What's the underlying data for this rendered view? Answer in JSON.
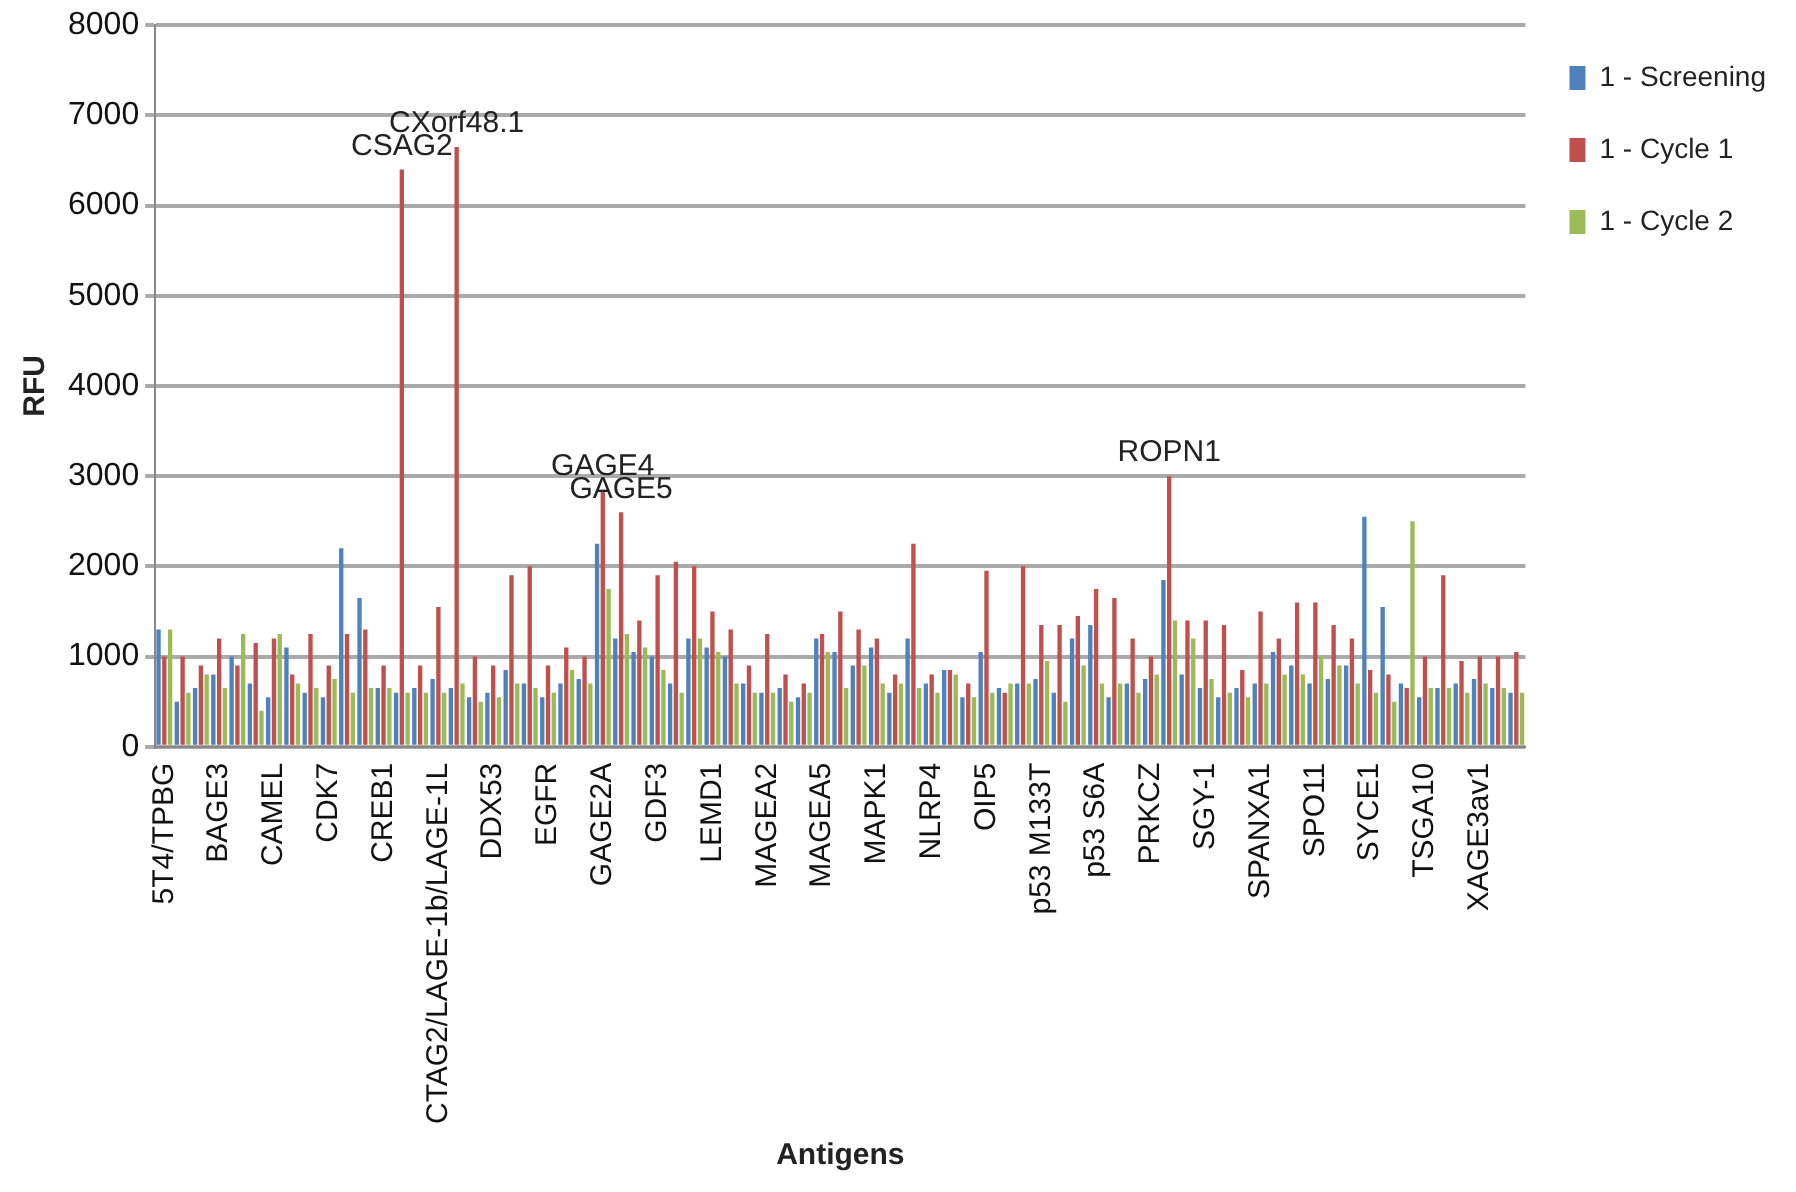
{
  "chart_data": {
    "type": "bar",
    "xlabel": "Antigens",
    "ylabel": "RFU",
    "categories": [
      "5T4/TPBG",
      null,
      null,
      "BAGE3",
      null,
      null,
      "CAMEL",
      null,
      null,
      "CDK7",
      null,
      null,
      "CREB1",
      null,
      null,
      "CTAG2/LAGE-1b/LAGE-1L",
      null,
      null,
      "DDX53",
      null,
      null,
      "EGFR",
      null,
      null,
      "GAGE2A",
      null,
      null,
      "GDF3",
      null,
      null,
      "LEMD1",
      null,
      null,
      "MAGEA2",
      null,
      null,
      "MAGEA5",
      null,
      null,
      "MAPK1",
      null,
      null,
      "NLRP4",
      null,
      null,
      "OIP5",
      null,
      null,
      "p53 M133T",
      null,
      null,
      "p53 S6A",
      null,
      null,
      "PRKCZ",
      null,
      null,
      "SGY-1",
      null,
      null,
      "SPANXA1",
      null,
      null,
      "SPO11",
      null,
      null,
      "SYCE1",
      null,
      null,
      "TSGA10",
      null,
      null,
      "XAGE3av1",
      null,
      null
    ],
    "series": [
      {
        "name": "1 - Screening",
        "color": "#4f81bd",
        "values": [
          1300,
          500,
          650,
          800,
          1000,
          700,
          550,
          1100,
          600,
          550,
          2200,
          1650,
          650,
          600,
          650,
          750,
          650,
          550,
          600,
          850,
          700,
          550,
          700,
          750,
          2250,
          1200,
          1050,
          1000,
          700,
          1200,
          1100,
          1000,
          700,
          600,
          650,
          550,
          1200,
          1050,
          900,
          1100,
          600,
          1200,
          700,
          850,
          550,
          1050,
          650,
          700,
          750,
          600,
          1200,
          1350,
          550,
          700,
          750,
          1850,
          800,
          650,
          550,
          650,
          700,
          1050,
          900,
          700,
          750,
          900,
          2550,
          1550,
          700,
          550,
          650,
          700,
          750,
          650,
          600
        ]
      },
      {
        "name": "1 - Cycle 1",
        "color": "#c0504d",
        "values": [
          1000,
          1000,
          900,
          1200,
          900,
          1150,
          1200,
          800,
          1250,
          900,
          1250,
          1300,
          900,
          6400,
          900,
          1550,
          6650,
          1000,
          900,
          1900,
          2000,
          900,
          1100,
          1000,
          2850,
          2600,
          1400,
          1900,
          2050,
          2000,
          1500,
          1300,
          900,
          1250,
          800,
          700,
          1250,
          1500,
          1300,
          1200,
          800,
          2250,
          800,
          850,
          700,
          1950,
          600,
          2000,
          1350,
          1350,
          1450,
          1750,
          1650,
          1200,
          1000,
          3000,
          1400,
          1400,
          1350,
          850,
          1500,
          1200,
          1600,
          1600,
          1350,
          1200,
          850,
          800,
          650,
          1000,
          1900,
          950,
          1000,
          1000,
          1050
        ]
      },
      {
        "name": "1 - Cycle 2",
        "color": "#9bbb59",
        "values": [
          1300,
          600,
          800,
          650,
          1250,
          400,
          1250,
          700,
          650,
          750,
          600,
          650,
          650,
          600,
          600,
          600,
          700,
          500,
          550,
          700,
          650,
          600,
          850,
          700,
          1750,
          1250,
          1100,
          850,
          600,
          1200,
          1050,
          700,
          600,
          600,
          500,
          600,
          1050,
          650,
          900,
          700,
          700,
          650,
          600,
          800,
          550,
          600,
          700,
          700,
          950,
          500,
          900,
          700,
          700,
          600,
          800,
          1400,
          1200,
          750,
          600,
          550,
          700,
          800,
          800,
          1000,
          900,
          700,
          600,
          500,
          2500,
          650,
          650,
          600,
          700,
          650,
          600
        ]
      }
    ],
    "ylim": [
      0,
      8000
    ],
    "yticks": [
      0,
      1000,
      2000,
      3000,
      4000,
      5000,
      6000,
      7000,
      8000
    ],
    "grid": "y",
    "legend": "top right",
    "annotations": [
      {
        "text": "CSAG2",
        "y": 6400
      },
      {
        "text": "CXorf48.1",
        "y": 6650
      },
      {
        "text": "GAGE4",
        "y": 2850
      },
      {
        "text": "GAGE5",
        "y": 2600
      },
      {
        "text": "ROPN1",
        "y": 3000
      }
    ]
  }
}
